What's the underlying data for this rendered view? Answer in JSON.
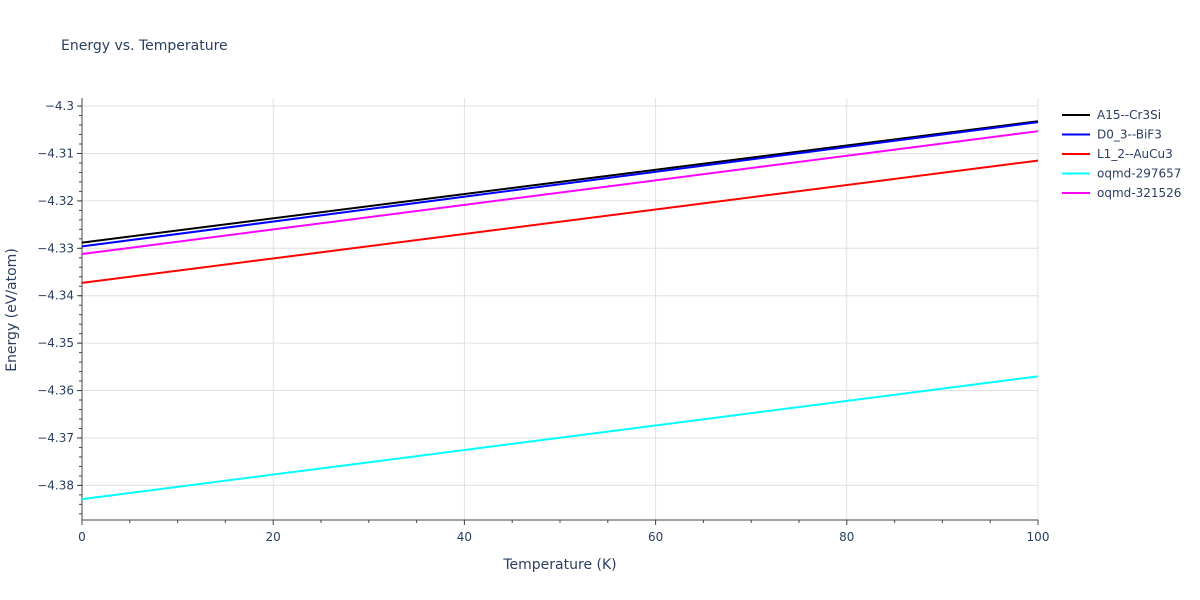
{
  "chart_data": {
    "type": "line",
    "title": "Energy vs. Temperature",
    "xlabel": "Temperature (K)",
    "ylabel": "Energy (eV/atom)",
    "xlim": [
      0,
      100
    ],
    "ylim": [
      -4.3873,
      -4.2983
    ],
    "xticks": [
      0,
      20,
      40,
      60,
      80,
      100
    ],
    "xtick_labels": [
      "0",
      "20",
      "40",
      "60",
      "80",
      "100"
    ],
    "yticks": [
      -4.3,
      -4.31,
      -4.32,
      -4.33,
      -4.34,
      -4.35,
      -4.36,
      -4.37,
      -4.38
    ],
    "ytick_labels": [
      "−4.3",
      "−4.31",
      "−4.32",
      "−4.33",
      "−4.34",
      "−4.35",
      "−4.36",
      "−4.37",
      "−4.38"
    ],
    "grid": true,
    "legend_position": "right",
    "x": [
      0,
      100
    ],
    "series": [
      {
        "name": "A15--Cr3Si",
        "color": "#000000",
        "values": [
          -4.3288,
          -4.3032
        ]
      },
      {
        "name": "D0_3--BiF3",
        "color": "#0000ff",
        "values": [
          -4.3296,
          -4.3034
        ]
      },
      {
        "name": "L1_2--AuCu3",
        "color": "#ff0000",
        "values": [
          -4.3373,
          -4.3115
        ]
      },
      {
        "name": "oqmd-297657",
        "color": "#00ffff",
        "values": [
          -4.3829,
          -4.357
        ]
      },
      {
        "name": "oqmd-321526",
        "color": "#ff00ff",
        "values": [
          -4.3312,
          -4.3053
        ]
      }
    ]
  }
}
